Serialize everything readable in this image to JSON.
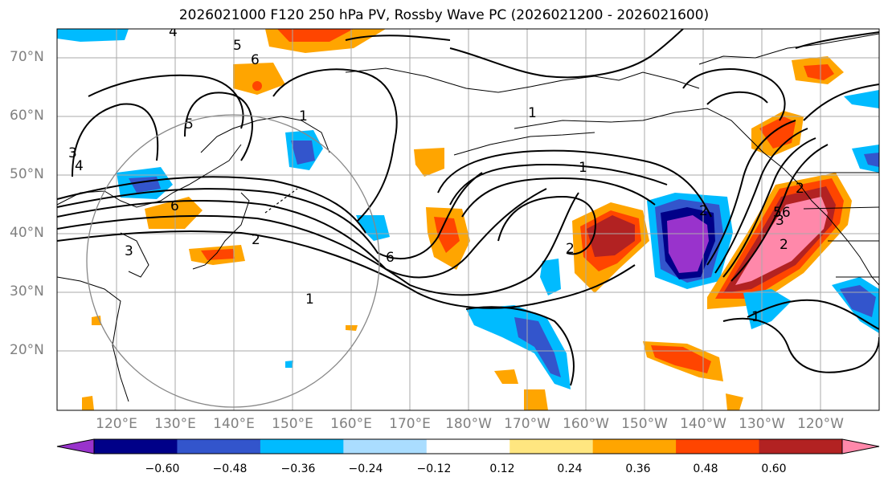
{
  "title": "2026021000 F120 250 hPa PV, Rossby Wave PC (2026021200 - 2026021600)",
  "lat_labels": [
    "70°N",
    "60°N",
    "50°N",
    "40°N",
    "30°N",
    "20°N"
  ],
  "lon_labels": [
    "120°E",
    "130°E",
    "140°E",
    "150°E",
    "160°E",
    "170°E",
    "180°W",
    "170°W",
    "160°W",
    "150°W",
    "140°W",
    "130°W",
    "120°W"
  ],
  "colorbar": {
    "colors": [
      "#9933cc",
      "#000088",
      "#3355cc",
      "#00bbff",
      "#aaddff",
      "#ffffff",
      "#ffe680",
      "#ffa500",
      "#ff4500",
      "#b22222",
      "#ff88aa"
    ],
    "ticks": [
      "−0.60",
      "−0.48",
      "−0.36",
      "−0.24",
      "−0.12",
      "0.12",
      "0.24",
      "0.36",
      "0.48",
      "0.60"
    ]
  },
  "contour_labels": [
    "4",
    "5",
    "6",
    "5",
    "4",
    "3",
    "3",
    "1",
    "6",
    "2",
    "6",
    "1",
    "1",
    "1",
    "2",
    "2",
    "3",
    "56",
    "2",
    "1",
    "2"
  ]
}
